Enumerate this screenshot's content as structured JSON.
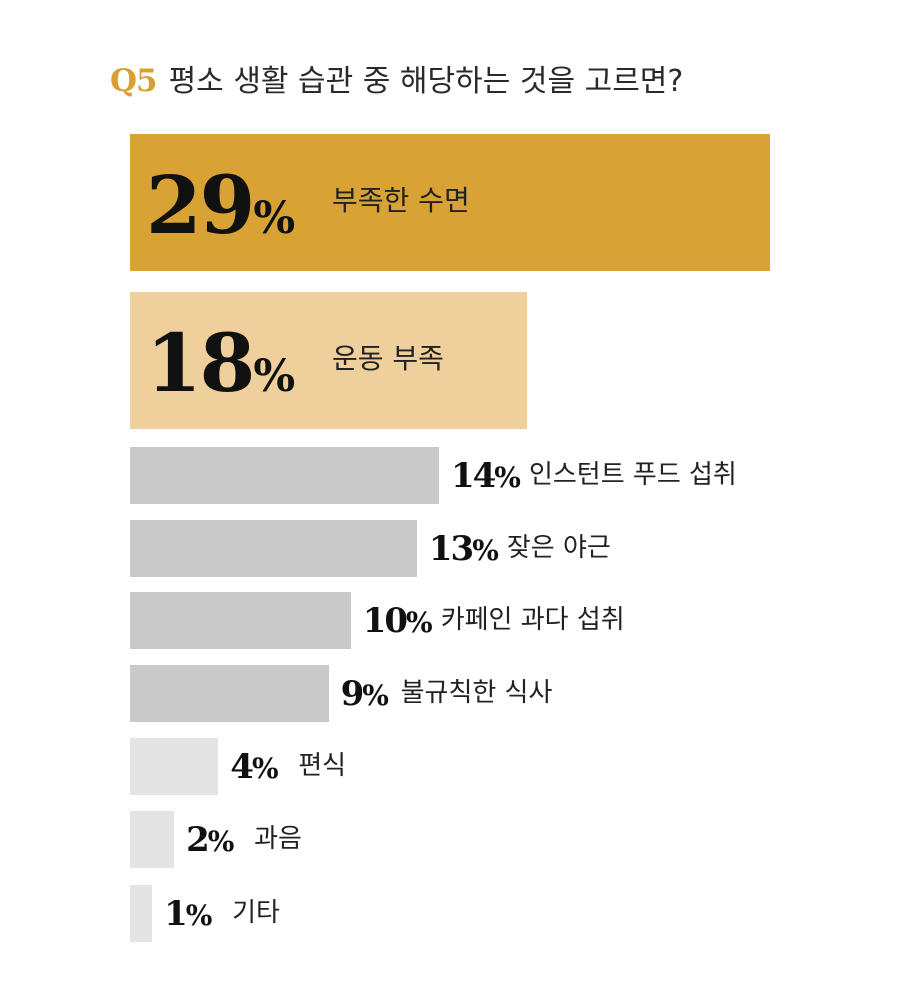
{
  "question": {
    "number": "Q5",
    "text": "평소 생활 습관 중 해당하는 것을 고르면?"
  },
  "chart_data": {
    "type": "bar",
    "orientation": "horizontal",
    "categories": [
      "부족한 수면",
      "운동 부족",
      "인스턴트 푸드 섭취",
      "잦은 야근",
      "카페인 과다 섭취",
      "불규칙한 식사",
      "편식",
      "과음",
      "기타"
    ],
    "values": [
      29,
      18,
      14,
      13,
      10,
      9,
      4,
      2,
      1
    ],
    "labels": [
      "29%",
      "18%",
      "14%",
      "13%",
      "10%",
      "9%",
      "4%",
      "2%",
      "1%"
    ],
    "unit": "%",
    "colors": [
      "#d8a235",
      "#efcf9b",
      "#c8c9c8",
      "#c8c9c8",
      "#c8c9c8",
      "#c8c9c8",
      "#e4e4e4",
      "#e4e4e4",
      "#e4e4e4"
    ],
    "grid": false,
    "legend": "none"
  }
}
